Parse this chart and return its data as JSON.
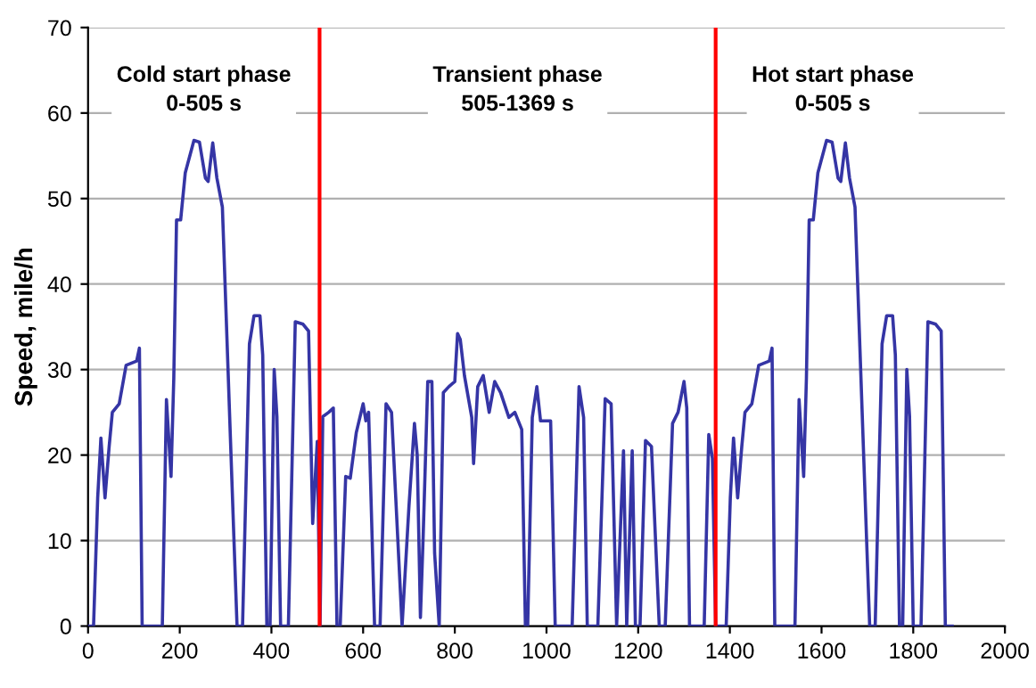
{
  "chart_data": {
    "type": "line",
    "ylabel": "Speed, mile/h",
    "xlim": [
      0,
      2000
    ],
    "xticks": [
      0,
      200,
      400,
      600,
      800,
      1000,
      1200,
      1400,
      1600,
      1800,
      2000
    ],
    "ylim": [
      0,
      70
    ],
    "yticks": [
      0,
      10,
      20,
      30,
      40,
      50,
      60,
      70
    ],
    "grid": "y",
    "marker": "none",
    "line_style": "solid",
    "annotations": [
      "Cold start phase\n0-505 s",
      "Transient phase\n505-1369 s",
      "Hot start phase\n0-505 s"
    ],
    "ref_lines": [
      {
        "axis": "x",
        "value": 505,
        "color": "#ff0000"
      },
      {
        "axis": "x",
        "value": 1369,
        "color": "#ff0000"
      }
    ],
    "series": [
      {
        "color": "#3535a5",
        "x": [
          0,
          12,
          21,
          28,
          37,
          46,
          53,
          68,
          83,
          106,
          112,
          118,
          162,
          171,
          181,
          187,
          193,
          202,
          212,
          231,
          243,
          256,
          262,
          272,
          281,
          293,
          318,
          325,
          337,
          352,
          362,
          375,
          381,
          390,
          397,
          406,
          412,
          420,
          437,
          452,
          469,
          481,
          490,
          500,
          506,
          512,
          525,
          535,
          543,
          550,
          562,
          572,
          585,
          600,
          606,
          612,
          625,
          637,
          650,
          662,
          685,
          700,
          712,
          718,
          725,
          731,
          741,
          750,
          756,
          766,
          775,
          787,
          800,
          806,
          812,
          821,
          837,
          841,
          850,
          862,
          875,
          887,
          900,
          918,
          931,
          946,
          954,
          959,
          969,
          979,
          987,
          1000,
          1009,
          1019,
          1056,
          1071,
          1081,
          1089,
          1112,
          1128,
          1141,
          1153,
          1168,
          1175,
          1187,
          1194,
          1204,
          1216,
          1229,
          1246,
          1259,
          1275,
          1287,
          1300,
          1306,
          1312,
          1344,
          1354,
          1362,
          1369,
          1380,
          1392,
          1401,
          1408,
          1417,
          1426,
          1433,
          1448,
          1463,
          1486,
          1492,
          1498,
          1542,
          1551,
          1561,
          1567,
          1573,
          1582,
          1592,
          1611,
          1623,
          1636,
          1642,
          1652,
          1661,
          1673,
          1698,
          1705,
          1717,
          1732,
          1742,
          1755,
          1761,
          1770,
          1777,
          1786,
          1792,
          1800,
          1817,
          1832,
          1849,
          1861,
          1870,
          1885
        ],
        "values": [
          0,
          0,
          15,
          22,
          15,
          21,
          25,
          26,
          30.5,
          31,
          32.5,
          0,
          0,
          26.5,
          17.5,
          29,
          47.5,
          47.5,
          53,
          56.8,
          56.6,
          52.4,
          52,
          56.5,
          52.4,
          49,
          10.5,
          0,
          0,
          33,
          36.3,
          36.3,
          31.7,
          0,
          0,
          30,
          24.5,
          0,
          0,
          35.6,
          35.3,
          34.5,
          12,
          21.6,
          0,
          24.5,
          25,
          25.5,
          0,
          0,
          17.5,
          17.3,
          22.6,
          26,
          24,
          25,
          0,
          0,
          26,
          25,
          0,
          14,
          23.7,
          20,
          1,
          10.5,
          28.6,
          28.6,
          8.5,
          0,
          27.3,
          28,
          28.6,
          34.2,
          33.5,
          29.3,
          24.4,
          19,
          28,
          29.3,
          25,
          28.6,
          27.3,
          24.4,
          25,
          23,
          0,
          0,
          24.4,
          28,
          24,
          24,
          24,
          0,
          0,
          28,
          24.4,
          0,
          0,
          26.6,
          26,
          0,
          20.5,
          0,
          20.5,
          0,
          0,
          21.7,
          21,
          0,
          0,
          23.7,
          25,
          28.6,
          25.5,
          0,
          0,
          22.4,
          19.6,
          0,
          0,
          0,
          15,
          22,
          15,
          21,
          25,
          26,
          30.5,
          31,
          32.5,
          0,
          0,
          26.5,
          17.5,
          29,
          47.5,
          47.5,
          53,
          56.8,
          56.6,
          52.4,
          52,
          56.5,
          52.4,
          49,
          10.5,
          0,
          0,
          33,
          36.3,
          36.3,
          31.7,
          0,
          0,
          30,
          24.5,
          0,
          0,
          35.6,
          35.3,
          34.5,
          0,
          0
        ]
      }
    ]
  }
}
